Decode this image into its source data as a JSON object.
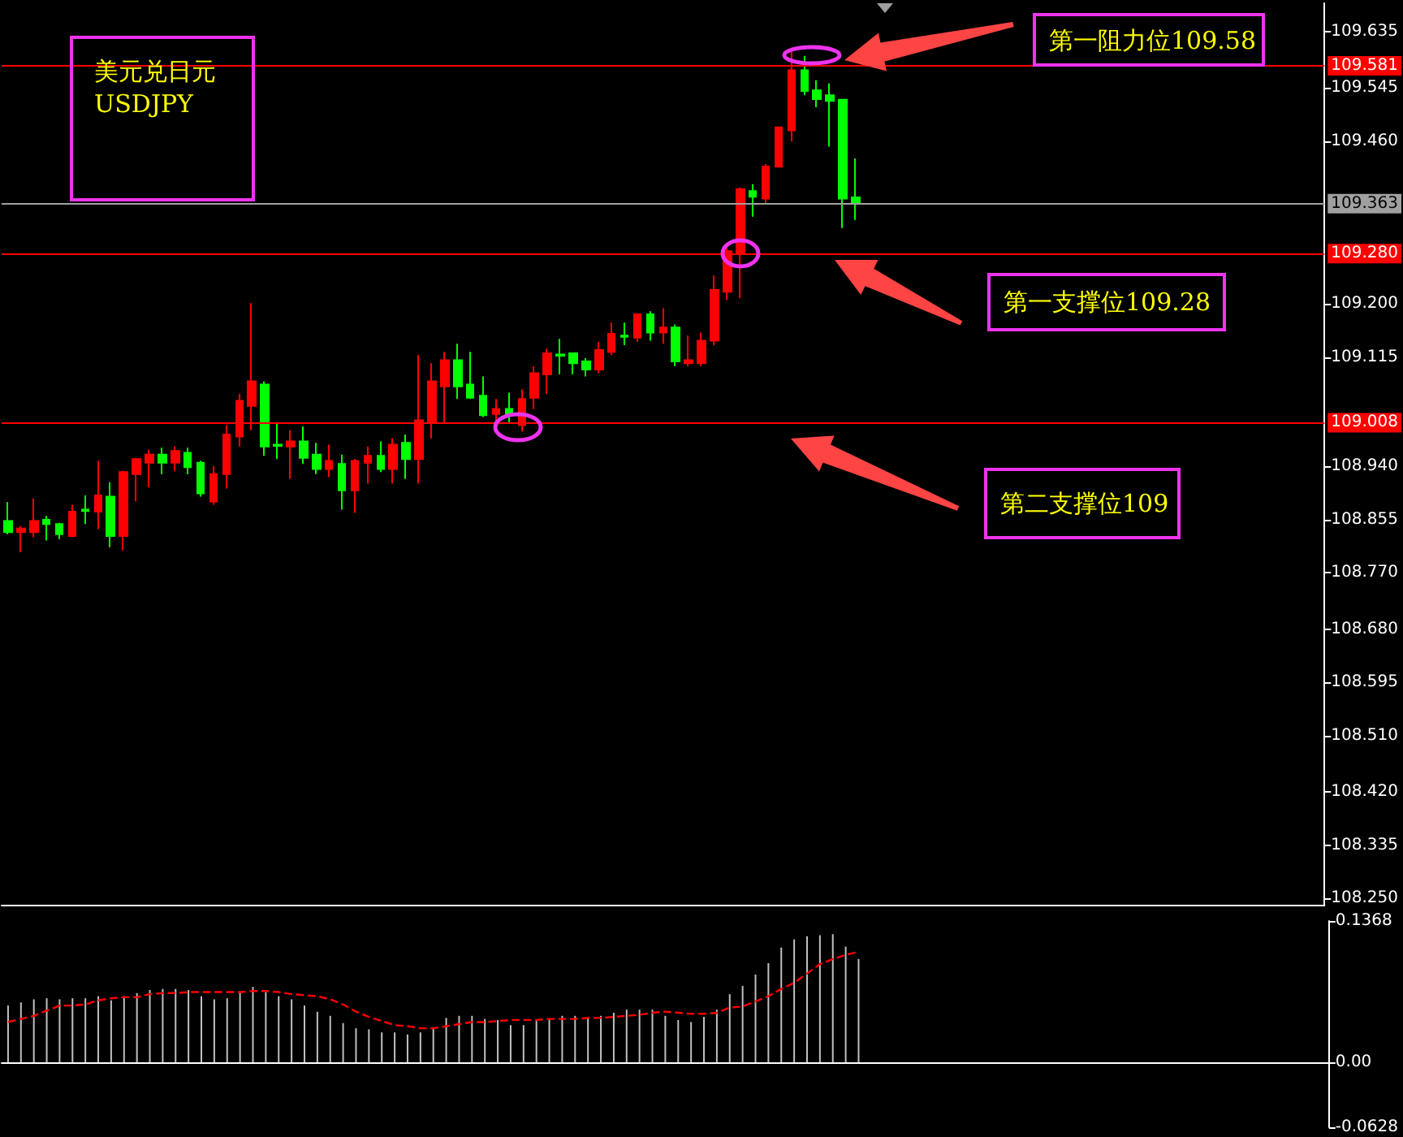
{
  "chart_data": [
    {
      "type": "candlestick",
      "annotations": [
        "美元兑日元",
        "USDJPY",
        "第一阻力位109.58",
        "第一支撑位109.28",
        "第二支撑位109"
      ],
      "categories": [
        null,
        null,
        null,
        null,
        null,
        null,
        null,
        null,
        null,
        null,
        null,
        null,
        null,
        null,
        null,
        null,
        null,
        null,
        null,
        null,
        null,
        null,
        null,
        null,
        null,
        null,
        null,
        null,
        null,
        null,
        null,
        null,
        null,
        null,
        null,
        null,
        null,
        null,
        null,
        null,
        null,
        null,
        null,
        null,
        null,
        null,
        null,
        null,
        null,
        null,
        null,
        null,
        null,
        null,
        null,
        null,
        null,
        null,
        null,
        null,
        null,
        null,
        null,
        null,
        null,
        null,
        null,
        null,
        null,
        null,
        null,
        null,
        null,
        null,
        null,
        null,
        null,
        null,
        null,
        null,
        null,
        null,
        null,
        null,
        null,
        null,
        null,
        null,
        null,
        null,
        null,
        null,
        null,
        null,
        null,
        null,
        null,
        null,
        null,
        null,
        null,
        null,
        null
      ],
      "ohlc": [
        [
          108.853,
          108.883,
          108.832,
          108.835
        ],
        [
          108.835,
          108.845,
          108.803,
          108.841
        ],
        [
          108.835,
          108.889,
          108.827,
          108.853
        ],
        [
          108.855,
          108.861,
          108.822,
          108.848
        ],
        [
          108.848,
          108.85,
          108.824,
          108.832
        ],
        [
          108.829,
          108.879,
          108.827,
          108.868
        ],
        [
          108.871,
          108.894,
          108.848,
          108.869
        ],
        [
          108.868,
          108.949,
          108.84,
          108.894
        ],
        [
          108.892,
          108.915,
          108.811,
          108.829
        ],
        [
          108.829,
          108.933,
          108.806,
          108.931
        ],
        [
          108.928,
          108.954,
          108.884,
          108.952
        ],
        [
          108.946,
          108.967,
          108.907,
          108.959
        ],
        [
          108.959,
          108.97,
          108.928,
          108.946
        ],
        [
          108.946,
          108.972,
          108.933,
          108.965
        ],
        [
          108.962,
          108.97,
          108.928,
          108.939
        ],
        [
          108.946,
          108.949,
          108.892,
          108.897
        ],
        [
          108.884,
          108.941,
          108.879,
          108.928
        ],
        [
          108.928,
          109.006,
          108.905,
          108.991
        ],
        [
          108.988,
          109.056,
          108.972,
          109.045
        ],
        [
          109.037,
          109.201,
          108.998,
          109.076
        ],
        [
          109.071,
          109.076,
          108.957,
          108.972
        ],
        [
          108.975,
          109.011,
          108.952,
          108.973
        ],
        [
          108.972,
          108.998,
          108.92,
          108.98
        ],
        [
          108.98,
          109.004,
          108.944,
          108.954
        ],
        [
          108.959,
          108.978,
          108.928,
          108.936
        ],
        [
          108.936,
          108.975,
          108.923,
          108.949
        ],
        [
          108.944,
          108.959,
          108.871,
          108.902
        ],
        [
          108.902,
          108.952,
          108.866,
          108.949
        ],
        [
          108.946,
          108.972,
          108.913,
          108.957
        ],
        [
          108.957,
          108.98,
          108.931,
          108.936
        ],
        [
          108.936,
          108.985,
          108.913,
          108.975
        ],
        [
          108.978,
          108.991,
          108.92,
          108.952
        ],
        [
          108.952,
          109.118,
          108.913,
          109.014
        ],
        [
          109.011,
          109.105,
          108.985,
          109.076
        ],
        [
          109.068,
          109.123,
          109.009,
          109.11
        ],
        [
          109.11,
          109.136,
          109.048,
          109.068
        ],
        [
          109.071,
          109.123,
          109.048,
          109.05
        ],
        [
          109.053,
          109.084,
          109.019,
          109.022
        ],
        [
          109.024,
          109.048,
          109.011,
          109.032
        ],
        [
          109.032,
          109.058,
          109.011,
          109.024
        ],
        [
          109.006,
          109.063,
          108.996,
          109.048
        ],
        [
          109.05,
          109.1,
          109.032,
          109.089
        ],
        [
          109.087,
          109.128,
          109.056,
          109.121
        ],
        [
          109.119,
          109.144,
          109.087,
          109.117
        ],
        [
          109.121,
          109.121,
          109.087,
          109.105
        ],
        [
          109.108,
          109.113,
          109.084,
          109.095
        ],
        [
          109.095,
          109.139,
          109.089,
          109.126
        ],
        [
          109.123,
          109.17,
          109.118,
          109.152
        ],
        [
          109.149,
          109.17,
          109.134,
          109.147
        ],
        [
          109.146,
          109.183,
          109.139,
          109.183
        ],
        [
          109.183,
          109.188,
          109.141,
          109.154
        ],
        [
          109.154,
          109.193,
          109.136,
          109.162
        ],
        [
          109.162,
          109.167,
          109.1,
          109.108
        ],
        [
          109.105,
          109.149,
          109.1,
          109.11
        ],
        [
          109.105,
          109.154,
          109.1,
          109.141
        ],
        [
          109.141,
          109.245,
          109.134,
          109.222
        ],
        [
          109.219,
          109.297,
          109.206,
          109.284
        ],
        [
          109.279,
          109.386,
          109.209,
          109.383
        ],
        [
          109.38,
          109.391,
          109.339,
          109.371
        ],
        [
          109.368,
          109.423,
          109.36,
          109.419
        ],
        [
          109.419,
          109.482,
          109.419,
          109.482
        ],
        [
          109.477,
          109.605,
          109.459,
          109.573
        ],
        [
          109.573,
          109.596,
          109.533,
          109.54
        ],
        [
          109.541,
          109.557,
          109.514,
          109.527
        ],
        [
          109.533,
          109.552,
          109.451,
          109.524
        ],
        [
          109.526,
          109.526,
          109.321,
          109.368
        ],
        [
          109.37,
          109.432,
          109.334,
          109.361
        ],
        null,
        null,
        null,
        null,
        null,
        null,
        null,
        null,
        null,
        null,
        null,
        null,
        null,
        null,
        null,
        null,
        null,
        null,
        null,
        null,
        null,
        null,
        null,
        null,
        null,
        null,
        null,
        null,
        null,
        null,
        null,
        null,
        null,
        null,
        null,
        null
      ],
      "colors": [
        "#00ff00",
        "#ff0000",
        "#ff0000",
        "#00ff00",
        "#00ff00",
        "#ff0000",
        "#00ff00",
        "#ff0000",
        "#00ff00",
        "#ff0000",
        "#ff0000",
        "#ff0000",
        "#00ff00",
        "#ff0000",
        "#00ff00",
        "#00ff00",
        "#ff0000",
        "#ff0000",
        "#ff0000",
        "#ff0000",
        "#00ff00",
        "#00ff00",
        "#ff0000",
        "#00ff00",
        "#00ff00",
        "#ff0000",
        "#00ff00",
        "#ff0000",
        "#ff0000",
        "#00ff00",
        "#ff0000",
        "#00ff00",
        "#ff0000",
        "#ff0000",
        "#ff0000",
        "#00ff00",
        "#00ff00",
        "#00ff00",
        "#ff0000",
        "#00ff00",
        "#ff0000",
        "#ff0000",
        "#ff0000",
        "#00ff00",
        "#00ff00",
        "#00ff00",
        "#ff0000",
        "#ff0000",
        "#00ff00",
        "#ff0000",
        "#00ff00",
        "#ff0000",
        "#00ff00",
        "#ff0000",
        "#ff0000",
        "#ff0000",
        "#ff0000",
        "#ff0000",
        "#00ff00",
        "#ff0000",
        "#ff0000",
        "#ff0000",
        "#00ff00",
        "#00ff00",
        "#00ff00",
        "#00ff00",
        "#00ff00",
        null,
        null,
        null,
        null,
        null,
        null,
        null,
        null,
        null,
        null,
        null,
        null,
        null,
        null,
        null,
        null,
        null,
        null,
        null,
        null,
        null,
        null,
        null,
        null,
        null,
        null,
        null,
        null,
        null,
        null,
        null,
        null,
        null,
        null,
        null,
        null
      ],
      "ylim": [
        108.24,
        109.68
      ],
      "yticks": [
        {
          "value": 108.25,
          "label": "108.250"
        },
        {
          "value": 108.335,
          "label": "108.335"
        },
        {
          "value": 108.42,
          "label": "108.420"
        },
        {
          "value": 108.51,
          "label": "108.510"
        },
        {
          "value": 108.595,
          "label": "108.595"
        },
        {
          "value": 108.68,
          "label": "108.680"
        },
        {
          "value": 108.77,
          "label": "108.770"
        },
        {
          "value": 108.855,
          "label": "108.855"
        },
        {
          "value": 108.94,
          "label": "108.940"
        },
        {
          "value": 109.115,
          "label": "109.115"
        },
        {
          "value": 109.2,
          "label": "109.200"
        },
        {
          "value": 109.46,
          "label": "109.460"
        },
        {
          "value": 109.545,
          "label": "109.545"
        },
        {
          "value": 109.635,
          "label": "109.635"
        }
      ],
      "ref_lines": [
        {
          "axis": "y",
          "value": 109.581,
          "label": "109.581",
          "color": "#ff0000"
        },
        {
          "axis": "y",
          "value": 109.363,
          "label": "109.363",
          "color": "#a0a0a0"
        },
        {
          "axis": "y",
          "value": 109.28,
          "label": "109.280",
          "color": "#ff0000"
        },
        {
          "axis": "y",
          "value": 109.008,
          "label": "109.008",
          "color": "#ff0000"
        }
      ],
      "tick_labels": "y"
    },
    {
      "type": "bar",
      "categories": [
        null,
        null,
        null,
        null,
        null,
        null,
        null,
        null,
        null,
        null,
        null,
        null,
        null,
        null,
        null,
        null,
        null,
        null,
        null,
        null,
        null,
        null,
        null,
        null,
        null,
        null,
        null,
        null,
        null,
        null,
        null,
        null,
        null,
        null,
        null,
        null,
        null,
        null,
        null,
        null,
        null,
        null,
        null,
        null,
        null,
        null,
        null,
        null,
        null,
        null,
        null,
        null,
        null,
        null,
        null,
        null,
        null,
        null,
        null,
        null,
        null,
        null,
        null,
        null,
        null,
        null,
        null,
        null,
        null,
        null,
        null,
        null,
        null,
        null,
        null,
        null,
        null,
        null,
        null,
        null,
        null,
        null,
        null,
        null,
        null,
        null,
        null,
        null,
        null,
        null,
        null,
        null,
        null,
        null,
        null,
        null,
        null,
        null,
        null,
        null,
        null,
        null,
        null
      ],
      "series": [
        {
          "type": "bar",
          "color": "#c0c0c0",
          "values": [
            0.055,
            0.058,
            0.061,
            0.062,
            0.061,
            0.062,
            0.062,
            0.064,
            0.06,
            0.064,
            0.067,
            0.07,
            0.071,
            0.071,
            0.07,
            0.064,
            0.061,
            0.062,
            0.068,
            0.073,
            0.068,
            0.064,
            0.061,
            0.055,
            0.049,
            0.045,
            0.038,
            0.033,
            0.032,
            0.029,
            0.029,
            0.027,
            0.029,
            0.034,
            0.043,
            0.045,
            0.045,
            0.042,
            0.041,
            0.036,
            0.036,
            0.04,
            0.042,
            0.045,
            0.045,
            0.043,
            0.045,
            0.048,
            0.051,
            0.051,
            0.051,
            0.045,
            0.041,
            0.039,
            0.044,
            0.051,
            0.066,
            0.074,
            0.085,
            0.096,
            0.111,
            0.119,
            0.122,
            0.123,
            0.124,
            0.112,
            0.1,
            null,
            null,
            null,
            null,
            null,
            null,
            null,
            null,
            null,
            null,
            null,
            null,
            null,
            null,
            null,
            null,
            null,
            null,
            null,
            null,
            null,
            null,
            null,
            null,
            null,
            null,
            null,
            null,
            null,
            null,
            null,
            null,
            null,
            null,
            null,
            null
          ]
        },
        {
          "type": "line",
          "color": "#ff0000",
          "line_style": "dashed",
          "values": [
            0.039,
            0.042,
            0.045,
            0.05,
            0.055,
            0.055,
            0.056,
            0.06,
            0.062,
            0.063,
            0.063,
            0.066,
            0.067,
            0.067,
            0.068,
            0.068,
            0.068,
            0.068,
            0.068,
            0.069,
            0.069,
            0.068,
            0.066,
            0.065,
            0.064,
            0.061,
            0.056,
            0.049,
            0.044,
            0.04,
            0.036,
            0.035,
            0.033,
            0.033,
            0.035,
            0.037,
            0.039,
            0.039,
            0.04,
            0.041,
            0.041,
            0.041,
            0.042,
            0.042,
            0.042,
            0.043,
            0.043,
            0.044,
            0.045,
            0.046,
            0.048,
            0.049,
            0.048,
            0.047,
            0.047,
            0.048,
            0.053,
            0.054,
            0.059,
            0.064,
            0.071,
            0.077,
            0.086,
            0.095,
            0.1,
            0.104,
            0.107,
            null,
            null,
            null,
            null,
            null,
            null,
            null,
            null,
            null,
            null,
            null,
            null,
            null,
            null,
            null,
            null,
            null,
            null,
            null,
            null,
            null,
            null,
            null,
            null,
            null,
            null,
            null,
            null,
            null,
            null,
            null,
            null,
            null,
            null,
            null,
            null
          ]
        }
      ],
      "ylim": [
        -0.0628,
        0.1368
      ],
      "yticks": [
        0.1368,
        {
          "value": 0,
          "label": "0.00"
        },
        -0.0628
      ],
      "marker": "none",
      "tick_labels": "y"
    }
  ]
}
